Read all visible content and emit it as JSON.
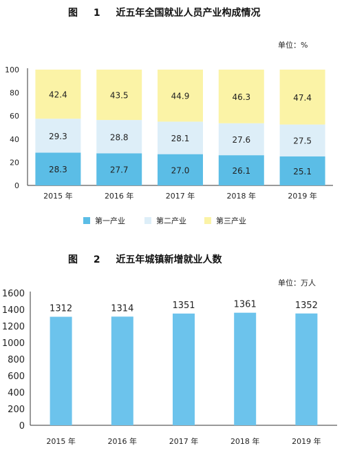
{
  "fig1": {
    "title": "图 1 近五年全国就业人员产业构成情况",
    "unit": "单位：%"
  },
  "fig2": {
    "title": "图 2 近五年城镇新增就业人数",
    "unit": "单位：万人"
  },
  "colors": {
    "primary": "#5bbde6",
    "secondary": "#ddeef8",
    "tertiary": "#fbf3a6",
    "bar2": "#6cc3ec"
  },
  "chart_data": [
    {
      "type": "bar",
      "stacked": true,
      "categories": [
        "2015 年",
        "2016 年",
        "2017 年",
        "2018 年",
        "2019 年"
      ],
      "series": [
        {
          "name": "第一产业",
          "values": [
            28.3,
            27.7,
            27.0,
            26.1,
            25.1
          ],
          "labels": [
            "28.3",
            "27.7",
            "27.0",
            "26.1",
            "25.1"
          ]
        },
        {
          "name": "第二产业",
          "values": [
            29.3,
            28.8,
            28.1,
            27.6,
            27.5
          ],
          "labels": [
            "29.3",
            "28.8",
            "28.1",
            "27.6",
            "27.5"
          ]
        },
        {
          "name": "第三产业",
          "values": [
            42.4,
            43.5,
            44.9,
            46.3,
            47.4
          ],
          "labels": [
            "42.4",
            "43.5",
            "44.9",
            "46.3",
            "47.4"
          ]
        }
      ],
      "ylim": [
        0,
        100
      ],
      "yticks": [
        0,
        20,
        40,
        60,
        80,
        100
      ],
      "legend": "bottom"
    },
    {
      "type": "bar",
      "categories": [
        "2015 年",
        "2016 年",
        "2017 年",
        "2018 年",
        "2019 年"
      ],
      "values": [
        1312,
        1314,
        1351,
        1361,
        1352
      ],
      "ylim": [
        0,
        1600
      ],
      "yticks": [
        0,
        200,
        400,
        600,
        800,
        1000,
        1200,
        1400,
        1600
      ]
    }
  ]
}
